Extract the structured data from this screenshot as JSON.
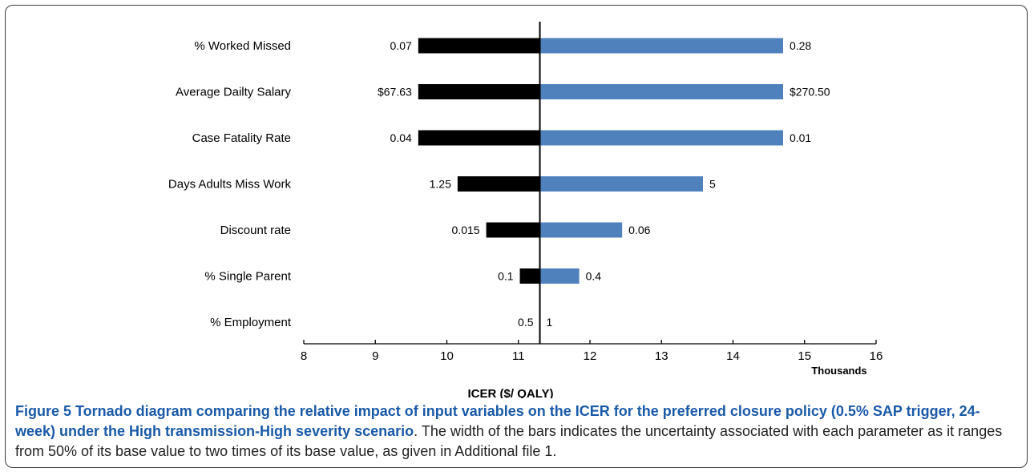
{
  "chart_data": {
    "type": "tornado",
    "xlabel": "ICER ($/ QALY)",
    "x_unit_label": "Thousands",
    "xlim": [
      8,
      16
    ],
    "x_ticks": [
      8,
      9,
      10,
      11,
      12,
      13,
      14,
      15,
      16
    ],
    "base_value": 11.3,
    "colors": {
      "low_bar": "#000000",
      "high_bar": "#4f81bd",
      "axis": "#000000"
    },
    "categories": [
      "% Worked Missed",
      "Average Dailty Salary",
      "Case Fatality Rate",
      "Days Adults Miss Work",
      "Discount rate",
      "% Single Parent",
      "% Employment"
    ],
    "series": [
      {
        "values": [
          9.6,
          9.6,
          9.6,
          10.15,
          10.55,
          11.02,
          11.3
        ],
        "labels": [
          "0.07",
          "$67.63",
          "0.04",
          "1.25",
          "0.015",
          "0.1",
          "0.5"
        ]
      },
      {
        "values": [
          14.7,
          14.7,
          14.7,
          13.58,
          12.45,
          11.85,
          11.3
        ],
        "labels": [
          "0.28",
          "$270.50",
          "0.01",
          "5",
          "0.06",
          "0.4",
          "1"
        ]
      }
    ]
  },
  "caption": {
    "figure_label": "Figure 5",
    "title": " Tornado diagram comparing the relative impact of input variables on the ICER for the preferred closure policy (0.5% SAP trigger, 24-week) under the High transmission-High severity scenario",
    "body": ". The width of the bars indicates the uncertainty associated with each parameter as it ranges from 50% of its base value to two times of its base value, as given in Additional file 1."
  }
}
